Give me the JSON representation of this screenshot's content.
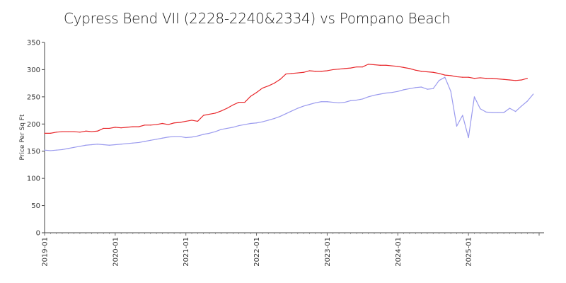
{
  "chart_data": {
    "type": "line",
    "title": "Cypress Bend VII (2228-2240&2334) vs Pompano Beach",
    "xlabel": "",
    "ylabel": "Price Per Sq Ft",
    "ylim": [
      0,
      350
    ],
    "xlim": [
      "2019-01",
      "2025-11"
    ],
    "grid": false,
    "legend": "none",
    "y_ticks": [
      "0",
      "50",
      "100",
      "150",
      "200",
      "250",
      "300",
      "350"
    ],
    "x_ticks": [
      "2019-01",
      "2020-01",
      "2021-01",
      "2022-01",
      "2023-01",
      "2024-01",
      "2025-01"
    ],
    "series": [
      {
        "color": "#e8262a",
        "points": [
          [
            "2019-01",
            183
          ],
          [
            "2019-02",
            183
          ],
          [
            "2019-03",
            185
          ],
          [
            "2019-04",
            186
          ],
          [
            "2019-05",
            186
          ],
          [
            "2019-06",
            186
          ],
          [
            "2019-07",
            185
          ],
          [
            "2019-08",
            187
          ],
          [
            "2019-09",
            186
          ],
          [
            "2019-10",
            187
          ],
          [
            "2019-11",
            192
          ],
          [
            "2019-12",
            192
          ],
          [
            "2020-01",
            194
          ],
          [
            "2020-02",
            193
          ],
          [
            "2020-03",
            194
          ],
          [
            "2020-04",
            195
          ],
          [
            "2020-05",
            195
          ],
          [
            "2020-06",
            198
          ],
          [
            "2020-07",
            198
          ],
          [
            "2020-08",
            199
          ],
          [
            "2020-09",
            201
          ],
          [
            "2020-10",
            199
          ],
          [
            "2020-11",
            202
          ],
          [
            "2020-12",
            203
          ],
          [
            "2021-01",
            205
          ],
          [
            "2021-02",
            207
          ],
          [
            "2021-03",
            205
          ],
          [
            "2021-04",
            216
          ],
          [
            "2021-05",
            218
          ],
          [
            "2021-06",
            220
          ],
          [
            "2021-07",
            224
          ],
          [
            "2021-08",
            229
          ],
          [
            "2021-09",
            235
          ],
          [
            "2021-10",
            240
          ],
          [
            "2021-11",
            240
          ],
          [
            "2021-12",
            251
          ],
          [
            "2022-01",
            258
          ],
          [
            "2022-02",
            266
          ],
          [
            "2022-03",
            270
          ],
          [
            "2022-04",
            275
          ],
          [
            "2022-05",
            282
          ],
          [
            "2022-06",
            292
          ],
          [
            "2022-07",
            293
          ],
          [
            "2022-08",
            294
          ],
          [
            "2022-09",
            295
          ],
          [
            "2022-10",
            298
          ],
          [
            "2022-11",
            297
          ],
          [
            "2022-12",
            297
          ],
          [
            "2023-01",
            298
          ],
          [
            "2023-02",
            300
          ],
          [
            "2023-03",
            301
          ],
          [
            "2023-04",
            302
          ],
          [
            "2023-05",
            303
          ],
          [
            "2023-06",
            305
          ],
          [
            "2023-07",
            305
          ],
          [
            "2023-08",
            310
          ],
          [
            "2023-09",
            309
          ],
          [
            "2023-10",
            308
          ],
          [
            "2023-11",
            308
          ],
          [
            "2023-12",
            307
          ],
          [
            "2024-01",
            306
          ],
          [
            "2024-02",
            304
          ],
          [
            "2024-03",
            302
          ],
          [
            "2024-04",
            299
          ],
          [
            "2024-05",
            297
          ],
          [
            "2024-06",
            296
          ],
          [
            "2024-07",
            295
          ],
          [
            "2024-08",
            293
          ],
          [
            "2024-09",
            290
          ],
          [
            "2024-10",
            289
          ],
          [
            "2024-11",
            287
          ],
          [
            "2024-12",
            286
          ],
          [
            "2025-01",
            286
          ],
          [
            "2025-02",
            284
          ],
          [
            "2025-03",
            285
          ],
          [
            "2025-04",
            284
          ],
          [
            "2025-05",
            284
          ],
          [
            "2025-06",
            283
          ],
          [
            "2025-07",
            282
          ],
          [
            "2025-08",
            281
          ],
          [
            "2025-09",
            280
          ],
          [
            "2025-10",
            281
          ],
          [
            "2025-11",
            284
          ]
        ]
      },
      {
        "color": "#9a9aee",
        "points": [
          [
            "2019-01",
            152
          ],
          [
            "2019-02",
            151
          ],
          [
            "2019-03",
            152
          ],
          [
            "2019-04",
            153
          ],
          [
            "2019-05",
            155
          ],
          [
            "2019-06",
            157
          ],
          [
            "2019-07",
            159
          ],
          [
            "2019-08",
            161
          ],
          [
            "2019-09",
            162
          ],
          [
            "2019-10",
            163
          ],
          [
            "2019-11",
            162
          ],
          [
            "2019-12",
            161
          ],
          [
            "2020-01",
            162
          ],
          [
            "2020-02",
            163
          ],
          [
            "2020-03",
            164
          ],
          [
            "2020-04",
            165
          ],
          [
            "2020-05",
            166
          ],
          [
            "2020-06",
            168
          ],
          [
            "2020-07",
            170
          ],
          [
            "2020-08",
            172
          ],
          [
            "2020-09",
            174
          ],
          [
            "2020-10",
            176
          ],
          [
            "2020-11",
            177
          ],
          [
            "2020-12",
            177
          ],
          [
            "2021-01",
            175
          ],
          [
            "2021-02",
            176
          ],
          [
            "2021-03",
            178
          ],
          [
            "2021-04",
            181
          ],
          [
            "2021-05",
            183
          ],
          [
            "2021-06",
            186
          ],
          [
            "2021-07",
            190
          ],
          [
            "2021-08",
            192
          ],
          [
            "2021-09",
            194
          ],
          [
            "2021-10",
            197
          ],
          [
            "2021-11",
            199
          ],
          [
            "2021-12",
            201
          ],
          [
            "2022-01",
            202
          ],
          [
            "2022-02",
            204
          ],
          [
            "2022-03",
            207
          ],
          [
            "2022-04",
            210
          ],
          [
            "2022-05",
            214
          ],
          [
            "2022-06",
            219
          ],
          [
            "2022-07",
            224
          ],
          [
            "2022-08",
            229
          ],
          [
            "2022-09",
            233
          ],
          [
            "2022-10",
            236
          ],
          [
            "2022-11",
            239
          ],
          [
            "2022-12",
            241
          ],
          [
            "2023-01",
            241
          ],
          [
            "2023-02",
            240
          ],
          [
            "2023-03",
            239
          ],
          [
            "2023-04",
            240
          ],
          [
            "2023-05",
            243
          ],
          [
            "2023-06",
            244
          ],
          [
            "2023-07",
            246
          ],
          [
            "2023-08",
            250
          ],
          [
            "2023-09",
            253
          ],
          [
            "2023-10",
            255
          ],
          [
            "2023-11",
            257
          ],
          [
            "2023-12",
            258
          ],
          [
            "2024-01",
            260
          ],
          [
            "2024-02",
            263
          ],
          [
            "2024-03",
            265
          ],
          [
            "2024-04",
            267
          ],
          [
            "2024-05",
            268
          ],
          [
            "2024-06",
            264
          ],
          [
            "2024-07",
            265
          ],
          [
            "2024-08",
            280
          ],
          [
            "2024-09",
            286
          ],
          [
            "2024-10",
            260
          ],
          [
            "2024-11",
            196
          ],
          [
            "2024-12",
            216
          ],
          [
            "2025-01",
            175
          ],
          [
            "2025-02",
            250
          ],
          [
            "2025-03",
            228
          ],
          [
            "2025-04",
            222
          ],
          [
            "2025-05",
            221
          ],
          [
            "2025-06",
            221
          ],
          [
            "2025-07",
            221
          ],
          [
            "2025-08",
            229
          ],
          [
            "2025-09",
            223
          ],
          [
            "2025-10",
            233
          ],
          [
            "2025-11",
            242
          ],
          [
            "2025-12",
            255
          ]
        ]
      }
    ]
  }
}
